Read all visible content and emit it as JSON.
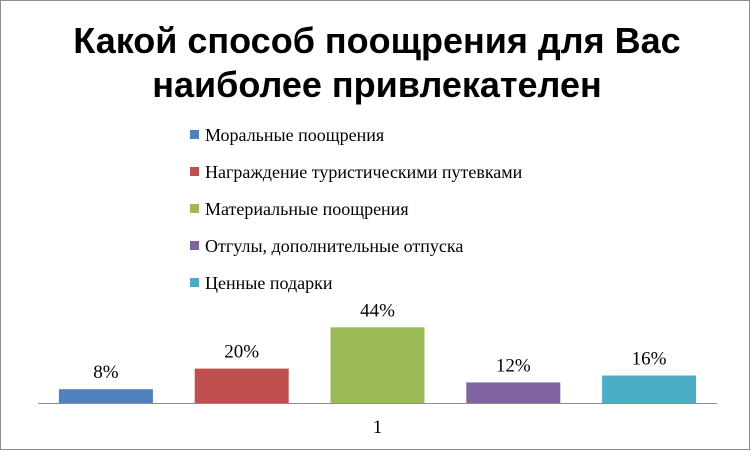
{
  "chart_data": {
    "type": "bar",
    "title": [
      "Какой способ поощрения для Вас",
      "наиболее привлекателен"
    ],
    "categories": [
      "1"
    ],
    "value_suffix": "%",
    "legend_position": "top",
    "grid": false,
    "ylim": [
      0,
      50
    ],
    "series": [
      {
        "name": "Моральные поощрения",
        "value": 8,
        "label": "8%",
        "color": "#4f81bd"
      },
      {
        "name": "Награждение туристическими  путевками",
        "value": 20,
        "label": "20%",
        "color": "#c0504d"
      },
      {
        "name": "Материальные поощрения",
        "value": 44,
        "label": "44%",
        "color": "#9bbb59"
      },
      {
        "name": "Отгулы, дополнительные отпуска",
        "value": 12,
        "label": "12%",
        "color": "#8064a2"
      },
      {
        "name": "Ценные подарки",
        "value": 16,
        "label": "16%",
        "color": "#4bacc6"
      }
    ]
  }
}
